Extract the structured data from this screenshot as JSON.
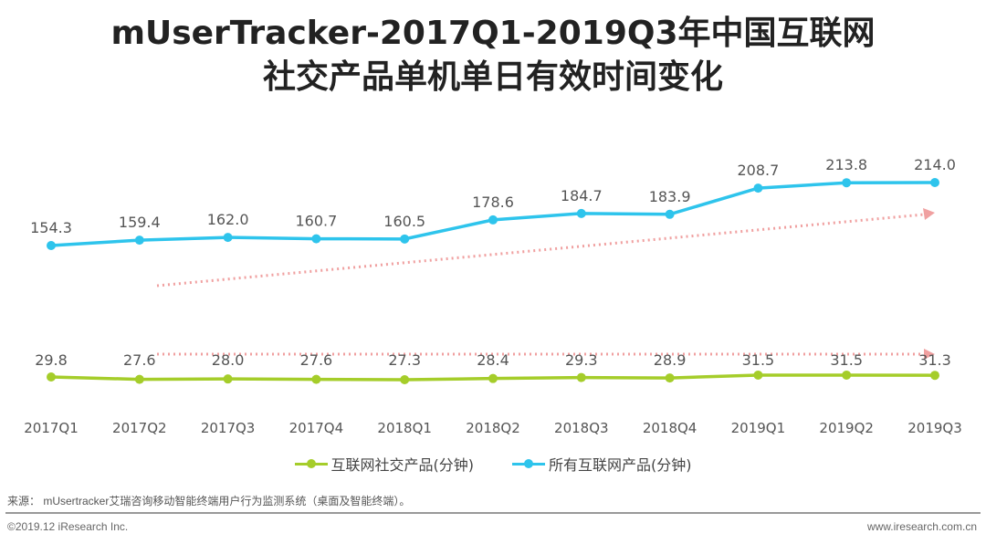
{
  "chart_data": {
    "type": "line",
    "title_line1": "mUserTracker-2017Q1-2019Q3年中国互联网",
    "title_line2": "社交产品单机单日有效时间变化",
    "categories": [
      "2017Q1",
      "2017Q2",
      "2017Q3",
      "2017Q4",
      "2018Q1",
      "2018Q2",
      "2018Q3",
      "2018Q4",
      "2019Q1",
      "2019Q2",
      "2019Q3"
    ],
    "series": [
      {
        "name": "互联网社交产品(分钟)",
        "color": "#a5cd2a",
        "values": [
          29.8,
          27.6,
          28.0,
          27.6,
          27.3,
          28.4,
          29.3,
          28.9,
          31.5,
          31.5,
          31.3
        ]
      },
      {
        "name": "所有互联网产品(分钟)",
        "color": "#2ec4ec",
        "values": [
          154.3,
          159.4,
          162.0,
          160.7,
          160.5,
          178.6,
          184.7,
          183.9,
          208.7,
          213.8,
          214.0
        ]
      }
    ],
    "trend_color": "#f0a0a0",
    "legend_position": "bottom",
    "grid": false
  },
  "footer": {
    "source": "来源： mUsertracker艾瑞咨询移动智能终端用户行为监测系统（桌面及智能终端）。",
    "copyright": "©2019.12 iResearch Inc.",
    "website": "www.iresearch.com.cn"
  }
}
